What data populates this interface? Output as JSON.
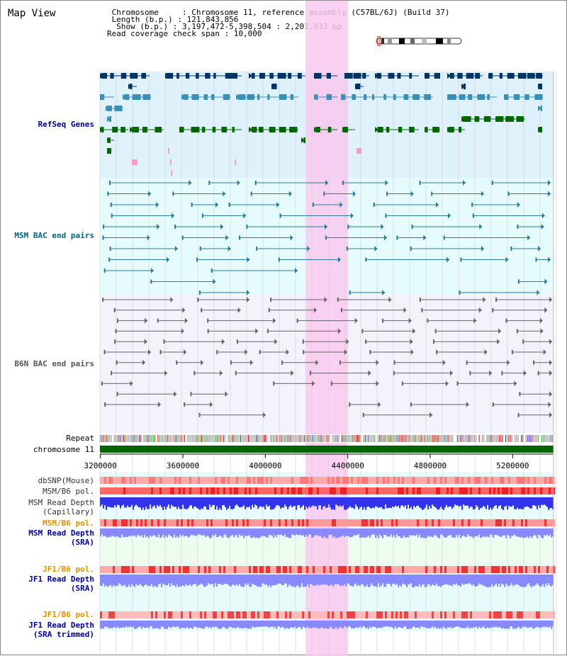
{
  "header": {
    "title": "Map View",
    "info_lines": [
      " Chromosome     : Chromosome 11, reference assembly (C57BL/6J) (Build 37)",
      " Length (b.p.) : 121,843,856",
      "  Show (b.p.) : 3,197,472-5,398,504 : 2,201,033 bp",
      "Read coverage check span : 10,000"
    ]
  },
  "tracks": {
    "refseq": {
      "label": "RefSeq Genes",
      "color": "#000099"
    },
    "msm_bac": {
      "label": "MSM BAC end pairs",
      "color": "#006677"
    },
    "b6n_bac": {
      "label": "B6N BAC end pairs",
      "color": "#555555"
    },
    "repeat": {
      "label": "Repeat"
    },
    "chromosome": {
      "label": "chromosome 11"
    },
    "dbsnp": {
      "label": "dbSNP(Mouse)"
    },
    "msm_b6_pol_1": {
      "label": "MSM/B6 pol."
    },
    "msm_depth_cap": {
      "label1": "MSM Read Depth",
      "label2": "(Capillary)"
    },
    "msm_b6_pol_2": {
      "label": "MSM/B6 pol."
    },
    "msm_depth_sra": {
      "label1": "MSM Read Depth",
      "label2": "(SRA)"
    },
    "jf1_b6_pol_1": {
      "label": "JF1/B6 pol."
    },
    "jf1_depth_sra": {
      "label1": "JF1 Read Depth",
      "label2": "(SRA)"
    },
    "jf1_b6_pol_2": {
      "label": "JF1/B6 pol."
    },
    "jf1_depth_trim": {
      "label1": "JF1 Read Depth",
      "label2": "(SRA trimmed)"
    }
  },
  "axis": {
    "ticks": [
      {
        "value": 3200000,
        "label": "3200000"
      },
      {
        "value": 3600000,
        "label": "3600000"
      },
      {
        "value": 4000000,
        "label": "4000000"
      },
      {
        "value": 4400000,
        "label": "4400000"
      },
      {
        "value": 4800000,
        "label": "4800000"
      },
      {
        "value": 5200000,
        "label": "5200000"
      }
    ],
    "range": [
      3197472,
      5398504
    ]
  },
  "highlight": {
    "start": 4200000,
    "end": 4400000
  },
  "colors": {
    "refseq_bg": "#dff1fb",
    "msm_bg": "#e6fbfb",
    "b6n_bg": "#f3f3fb",
    "highlight": "#f9c9ee",
    "refseq_dark": "#003366",
    "refseq_mid": "#3a8fb5",
    "refseq_green": "#006600",
    "refseq_pink": "#ff99cc",
    "msm_line": "#2a7a99",
    "b6n_line": "#666666",
    "chromosome_bar": "#006600",
    "depth_blue": "#3333ee",
    "depth_light": "#8888ff"
  }
}
